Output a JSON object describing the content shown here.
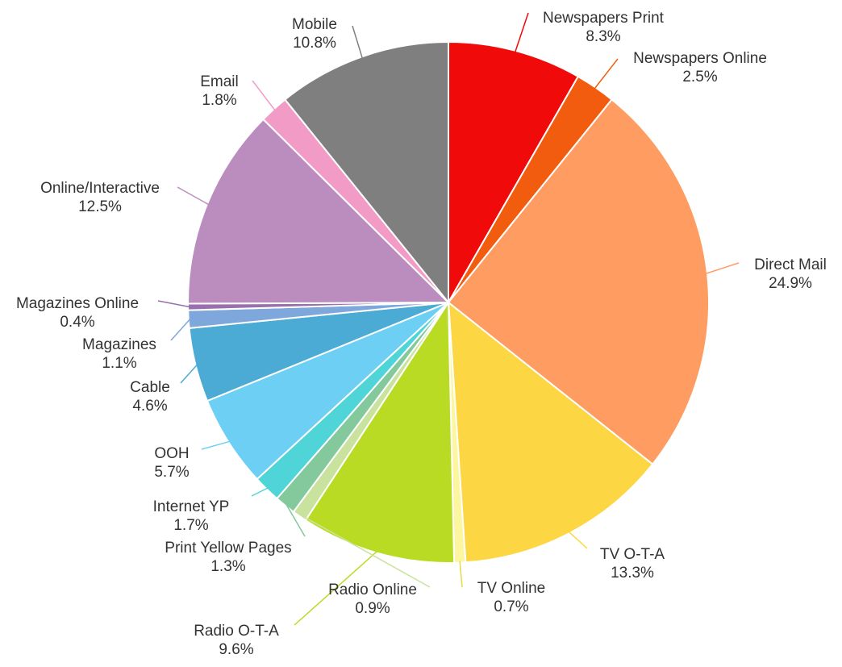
{
  "chart_data": {
    "type": "pie",
    "title": "",
    "start_angle_deg": 0,
    "direction": "clockwise",
    "slices": [
      {
        "label": "Newspapers Print",
        "value": 8.3,
        "display": "8.3%",
        "color": "#f10a0a"
      },
      {
        "label": "Newspapers Online",
        "value": 2.5,
        "display": "2.5%",
        "color": "#f25c0f"
      },
      {
        "label": "Direct Mail",
        "value": 24.9,
        "display": "24.9%",
        "color": "#fe9c62"
      },
      {
        "label": "TV O-T-A",
        "value": 13.3,
        "display": "13.3%",
        "color": "#fdd643"
      },
      {
        "label": "TV Online",
        "value": 0.7,
        "display": "0.7%",
        "color": "#fdf6a0"
      },
      {
        "label": "Radio O-T-A",
        "value": 9.6,
        "display": "9.6%",
        "color": "#b9db24"
      },
      {
        "label": "Radio Online",
        "value": 0.9,
        "display": "0.9%",
        "color": "#c9e39e"
      },
      {
        "label": "Print Yellow Pages",
        "value": 1.3,
        "display": "1.3%",
        "color": "#83c99c"
      },
      {
        "label": "Internet YP",
        "value": 1.7,
        "display": "1.7%",
        "color": "#4fd5d8"
      },
      {
        "label": "OOH",
        "value": 5.7,
        "display": "5.7%",
        "color": "#6dcff4"
      },
      {
        "label": "Cable",
        "value": 4.6,
        "display": "4.6%",
        "color": "#4babd5"
      },
      {
        "label": "Magazines",
        "value": 1.1,
        "display": "1.1%",
        "color": "#7ea7dc"
      },
      {
        "label": "Magazines Online",
        "value": 0.4,
        "display": "0.4%",
        "color": "#9a6fb0"
      },
      {
        "label": "Online/Interactive",
        "value": 12.5,
        "display": "12.5%",
        "color": "#bb8dbf"
      },
      {
        "label": "Email",
        "value": 1.8,
        "display": "1.8%",
        "color": "#f29bc6"
      },
      {
        "label": "Mobile",
        "value": 10.8,
        "display": "10.8%",
        "color": "#7f7f7f"
      }
    ]
  }
}
